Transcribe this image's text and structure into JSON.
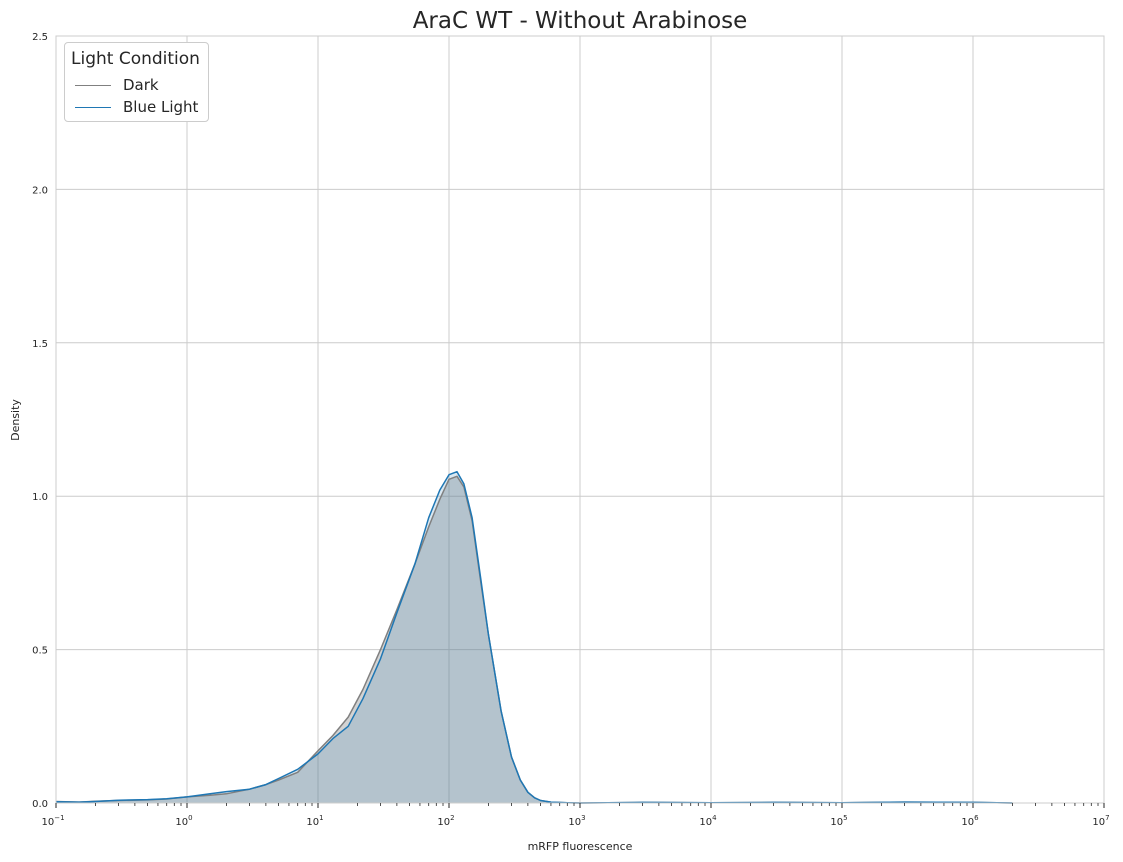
{
  "chart_data": {
    "type": "area",
    "title": "AraC WT - Without Arabinose",
    "xlabel": "mRFP fluorescence",
    "ylabel": "Density",
    "xscale": "log",
    "xlim": [
      0.1,
      10000000
    ],
    "ylim": [
      0,
      2.5
    ],
    "grid": true,
    "yticks": [
      "0.0",
      "0.5",
      "1.0",
      "1.5",
      "2.0",
      "2.5"
    ],
    "yticks_values": [
      0,
      0.5,
      1.0,
      1.5,
      2.0,
      2.5
    ],
    "xticks": [
      {
        "base": "10",
        "exp": "−1",
        "value": 0.1
      },
      {
        "base": "10",
        "exp": "0",
        "value": 1
      },
      {
        "base": "10",
        "exp": "1",
        "value": 10
      },
      {
        "base": "10",
        "exp": "2",
        "value": 100
      },
      {
        "base": "10",
        "exp": "3",
        "value": 1000
      },
      {
        "base": "10",
        "exp": "4",
        "value": 10000
      },
      {
        "base": "10",
        "exp": "5",
        "value": 100000
      },
      {
        "base": "10",
        "exp": "6",
        "value": 1000000
      },
      {
        "base": "10",
        "exp": "7",
        "value": 10000000
      }
    ],
    "legend": {
      "title": "Light Condition",
      "placement": "top-left"
    },
    "series": [
      {
        "name": "Dark",
        "color": "#808080",
        "x": [
          0.1,
          0.15,
          0.2,
          0.3,
          0.5,
          0.7,
          1.0,
          1.5,
          2.0,
          3.0,
          4.0,
          5.0,
          7.0,
          10,
          13,
          17,
          22,
          30,
          40,
          55,
          70,
          85,
          100,
          115,
          130,
          150,
          175,
          200,
          250,
          300,
          350,
          400,
          450,
          500,
          600,
          800,
          1000,
          3000,
          10000,
          30000,
          100000,
          300000,
          1000000,
          2000000
        ],
        "y": [
          0.005,
          0.003,
          0.006,
          0.008,
          0.01,
          0.013,
          0.02,
          0.025,
          0.03,
          0.045,
          0.06,
          0.075,
          0.1,
          0.17,
          0.22,
          0.28,
          0.37,
          0.5,
          0.63,
          0.78,
          0.9,
          0.99,
          1.055,
          1.065,
          1.03,
          0.92,
          0.72,
          0.55,
          0.3,
          0.15,
          0.075,
          0.035,
          0.017,
          0.008,
          0.003,
          0.001,
          0.0,
          0.002,
          0.001,
          0.002,
          0.001,
          0.003,
          0.002,
          0.0
        ]
      },
      {
        "name": "Blue Light",
        "color": "#1f77b4",
        "x": [
          0.1,
          0.15,
          0.2,
          0.3,
          0.5,
          0.7,
          1.0,
          1.5,
          2.0,
          3.0,
          4.0,
          5.0,
          7.0,
          10,
          13,
          17,
          22,
          30,
          40,
          55,
          70,
          85,
          100,
          115,
          130,
          150,
          175,
          200,
          250,
          300,
          350,
          400,
          450,
          500,
          600,
          800,
          1000,
          3000,
          10000,
          30000,
          100000,
          300000,
          1000000,
          2000000
        ],
        "y": [
          0.004,
          0.003,
          0.005,
          0.009,
          0.011,
          0.014,
          0.02,
          0.03,
          0.037,
          0.045,
          0.06,
          0.08,
          0.11,
          0.16,
          0.21,
          0.25,
          0.34,
          0.47,
          0.62,
          0.78,
          0.93,
          1.02,
          1.07,
          1.08,
          1.04,
          0.93,
          0.73,
          0.55,
          0.3,
          0.15,
          0.075,
          0.035,
          0.017,
          0.008,
          0.003,
          0.001,
          0.0,
          0.002,
          0.001,
          0.002,
          0.001,
          0.003,
          0.002,
          0.0
        ]
      }
    ]
  }
}
